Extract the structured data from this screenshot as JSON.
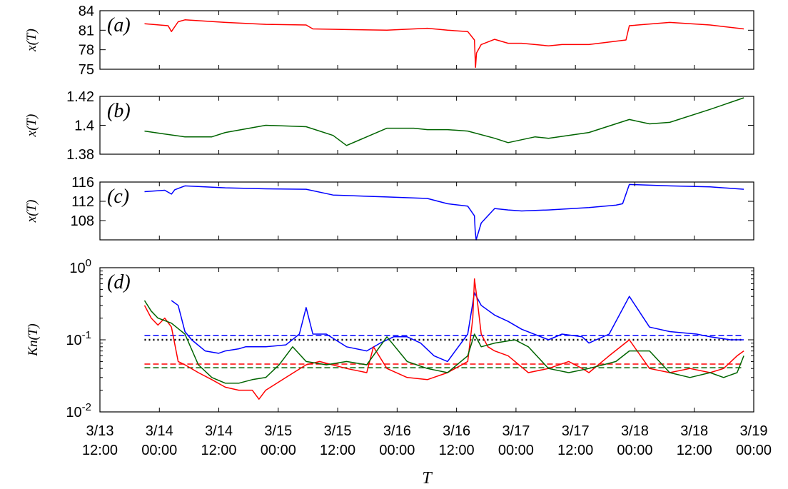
{
  "chart_data": {
    "type": "line",
    "x_axis": {
      "label": "T",
      "tick_labels": [
        [
          "3/13",
          "12:00"
        ],
        [
          "3/14",
          "00:00"
        ],
        [
          "3/14",
          "12:00"
        ],
        [
          "3/15",
          "00:00"
        ],
        [
          "3/15",
          "12:00"
        ],
        [
          "3/16",
          "00:00"
        ],
        [
          "3/16",
          "12:00"
        ],
        [
          "3/17",
          "00:00"
        ],
        [
          "3/17",
          "12:00"
        ],
        [
          "3/18",
          "00:00"
        ],
        [
          "3/18",
          "12:00"
        ],
        [
          "3/19",
          "00:00"
        ]
      ],
      "range_hours_from_first_tick": [
        0,
        132
      ],
      "tick_step_hours": 12
    },
    "panels": [
      {
        "label": "(a)",
        "ylabel": "x(T)",
        "ylim": [
          75,
          84
        ],
        "yticks": [
          75,
          78,
          81,
          84
        ],
        "ytick_labels": [
          "75",
          "78",
          "81",
          "84"
        ],
        "log": false,
        "series": [
          {
            "color": "#ff0000",
            "x": [
              0,
              7,
              8,
              10,
              12,
              24,
              36,
              48,
              50,
              60,
              72,
              84,
              90,
              96,
              98,
              98.3,
              98.6,
              100,
              104,
              108,
              112,
              120,
              124,
              132,
              143,
              144,
              156,
              168,
              178
            ],
            "y": [
              82.0,
              81.7,
              80.8,
              82.3,
              82.6,
              82.2,
              81.9,
              81.8,
              81.2,
              81.1,
              81.0,
              81.3,
              81.0,
              80.8,
              79.5,
              75.3,
              77.5,
              78.8,
              79.6,
              79.0,
              79.0,
              78.6,
              78.8,
              78.8,
              79.5,
              81.7,
              82.2,
              81.8,
              81.2
            ]
          }
        ]
      },
      {
        "label": "(b)",
        "ylabel": "x(T)",
        "ylim": [
          1.38,
          1.42
        ],
        "yticks": [
          1.38,
          1.4,
          1.42
        ],
        "ytick_labels": [
          "1.38",
          "1.4",
          "1.42"
        ],
        "log": false,
        "series": [
          {
            "color": "#006400",
            "x": [
              0,
              6,
              12,
              20,
              24,
              36,
              48,
              56,
              60,
              66,
              72,
              80,
              84,
              90,
              96,
              104,
              108,
              116,
              120,
              132,
              144,
              150,
              156,
              168,
              178
            ],
            "y": [
              1.396,
              1.394,
              1.392,
              1.392,
              1.395,
              1.4,
              1.399,
              1.393,
              1.386,
              1.392,
              1.398,
              1.398,
              1.397,
              1.397,
              1.396,
              1.391,
              1.388,
              1.392,
              1.391,
              1.395,
              1.404,
              1.401,
              1.402,
              1.411,
              1.419
            ]
          }
        ]
      },
      {
        "label": "(c)",
        "ylabel": "x(T)",
        "ylim": [
          104,
          116
        ],
        "yticks": [
          108,
          112,
          116
        ],
        "ytick_labels": [
          "108",
          "112",
          "116"
        ],
        "log": false,
        "series": [
          {
            "color": "#0000ff",
            "x": [
              0,
              6,
              8,
              9,
              12,
              24,
              36,
              48,
              56,
              60,
              72,
              84,
              90,
              96,
              98,
              98.2,
              98.5,
              100,
              104,
              108,
              112,
              120,
              132,
              140,
              142,
              144,
              156,
              168,
              178
            ],
            "y": [
              114.0,
              114.3,
              113.5,
              114.4,
              115.2,
              114.8,
              114.6,
              114.5,
              113.3,
              113.2,
              112.9,
              112.6,
              111.5,
              111.0,
              109.0,
              106.0,
              104.0,
              107.5,
              110.5,
              110.2,
              110.0,
              110.2,
              110.7,
              111.2,
              111.5,
              115.5,
              115.2,
              115.0,
              114.5
            ]
          }
        ]
      },
      {
        "label": "(d)",
        "ylabel": "Kn(T)",
        "ylim": [
          0.01,
          1
        ],
        "yticks": [
          0.01,
          0.1,
          1
        ],
        "ytick_labels": [
          [
            "10",
            "-2"
          ],
          [
            "10",
            "-1"
          ],
          [
            "10",
            "0"
          ]
        ],
        "log": true,
        "series": [
          {
            "color": "#0000ff",
            "x": [
              8,
              10,
              12,
              14,
              18,
              22,
              24,
              28,
              30,
              36,
              42,
              46,
              48,
              50,
              54,
              60,
              66,
              70,
              74,
              78,
              82,
              86,
              90,
              96,
              98,
              100,
              104,
              108,
              112,
              120,
              124,
              130,
              132,
              138,
              144,
              150,
              156,
              164,
              168,
              174,
              178
            ],
            "y": [
              0.35,
              0.3,
              0.13,
              0.1,
              0.07,
              0.065,
              0.07,
              0.075,
              0.08,
              0.08,
              0.085,
              0.12,
              0.28,
              0.12,
              0.12,
              0.08,
              0.07,
              0.09,
              0.11,
              0.11,
              0.09,
              0.06,
              0.05,
              0.12,
              0.45,
              0.3,
              0.22,
              0.18,
              0.14,
              0.1,
              0.12,
              0.11,
              0.09,
              0.12,
              0.4,
              0.15,
              0.13,
              0.12,
              0.11,
              0.1,
              0.1
            ]
          },
          {
            "color": "#ff0000",
            "x": [
              0,
              2,
              4,
              6,
              8,
              10,
              12,
              16,
              20,
              24,
              28,
              32,
              34,
              36,
              42,
              48,
              52,
              60,
              66,
              68,
              72,
              78,
              84,
              90,
              96,
              97.5,
              98,
              99,
              100,
              102,
              104,
              108,
              114,
              120,
              126,
              130,
              132,
              138,
              144,
              150,
              156,
              162,
              168,
              172,
              176,
              178
            ],
            "y": [
              0.3,
              0.2,
              0.16,
              0.2,
              0.15,
              0.05,
              0.045,
              0.035,
              0.028,
              0.022,
              0.02,
              0.02,
              0.015,
              0.02,
              0.03,
              0.045,
              0.05,
              0.04,
              0.035,
              0.08,
              0.04,
              0.03,
              0.028,
              0.035,
              0.05,
              0.2,
              0.7,
              0.3,
              0.12,
              0.08,
              0.07,
              0.06,
              0.035,
              0.04,
              0.05,
              0.04,
              0.035,
              0.06,
              0.1,
              0.04,
              0.035,
              0.04,
              0.035,
              0.04,
              0.06,
              0.07
            ]
          },
          {
            "color": "#006400",
            "x": [
              0,
              2,
              4,
              8,
              12,
              16,
              20,
              24,
              28,
              32,
              36,
              40,
              44,
              48,
              54,
              60,
              66,
              72,
              78,
              84,
              90,
              96,
              98,
              100,
              104,
              110,
              114,
              120,
              126,
              132,
              140,
              144,
              150,
              156,
              162,
              168,
              172,
              176,
              178
            ],
            "y": [
              0.35,
              0.25,
              0.2,
              0.17,
              0.12,
              0.045,
              0.03,
              0.025,
              0.025,
              0.028,
              0.03,
              0.045,
              0.08,
              0.05,
              0.045,
              0.05,
              0.045,
              0.11,
              0.05,
              0.04,
              0.035,
              0.06,
              0.12,
              0.08,
              0.09,
              0.1,
              0.08,
              0.04,
              0.035,
              0.04,
              0.05,
              0.07,
              0.07,
              0.035,
              0.03,
              0.035,
              0.03,
              0.035,
              0.06
            ]
          }
        ],
        "reference_lines": [
          {
            "color": "#0000ff",
            "dash": "dashed",
            "y": 0.115
          },
          {
            "color": "#000000",
            "dash": "dotted",
            "y": 0.1
          },
          {
            "color": "#ff0000",
            "dash": "dashed",
            "y": 0.046
          },
          {
            "color": "#006400",
            "dash": "dashed",
            "y": 0.041
          }
        ]
      }
    ]
  }
}
